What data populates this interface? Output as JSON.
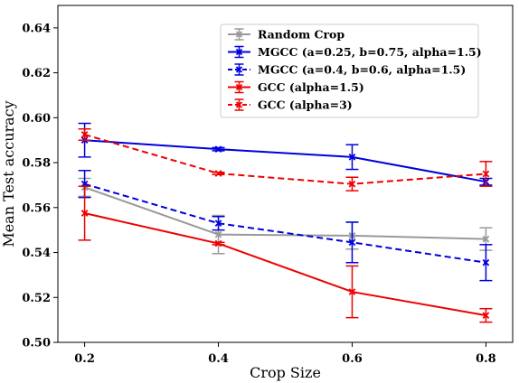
{
  "chart_data": {
    "type": "line",
    "xlabel": "Crop Size",
    "ylabel": "Mean Test accuracy",
    "xlim": [
      0.16,
      0.84
    ],
    "ylim": [
      0.5,
      0.65
    ],
    "xticks": [
      0.2,
      0.4,
      0.6,
      0.8
    ],
    "yticks": [
      0.5,
      0.52,
      0.54,
      0.56,
      0.58,
      0.6,
      0.62,
      0.64
    ],
    "xtick_labels": [
      "0.2",
      "0.4",
      "0.6",
      "0.8"
    ],
    "ytick_labels": [
      "0.50",
      "0.52",
      "0.54",
      "0.56",
      "0.58",
      "0.60",
      "0.62",
      "0.64"
    ],
    "x": [
      0.2,
      0.4,
      0.6,
      0.8
    ],
    "grid": false,
    "legend_position": "top-right",
    "series": [
      {
        "name": "Random Crop",
        "color": "#999999",
        "linestyle": "solid",
        "values": [
          0.569,
          0.548,
          0.5475,
          0.546
        ],
        "errors": [
          0.004,
          0.0085,
          0.006,
          0.005
        ]
      },
      {
        "name": "MGCC (a=0.25, b=0.75, alpha=1.5)",
        "color": "#0000dd",
        "linestyle": "solid",
        "values": [
          0.59,
          0.586,
          0.5825,
          0.5715
        ],
        "errors": [
          0.0075,
          0.0007,
          0.0055,
          0.0015
        ]
      },
      {
        "name": "MGCC (a=0.4, b=0.6, alpha=1.5)",
        "color": "#0000dd",
        "linestyle": "dashed",
        "values": [
          0.5705,
          0.553,
          0.5445,
          0.5355
        ],
        "errors": [
          0.006,
          0.003,
          0.009,
          0.008
        ]
      },
      {
        "name": "GCC (alpha=1.5)",
        "color": "#ee0000",
        "linestyle": "solid",
        "values": [
          0.5575,
          0.544,
          0.5225,
          0.512
        ],
        "errors": [
          0.012,
          0.0005,
          0.0115,
          0.003
        ]
      },
      {
        "name": "GCC (alpha=3)",
        "color": "#ee0000",
        "linestyle": "dashed",
        "values": [
          0.5925,
          0.5752,
          0.5705,
          0.575
        ],
        "errors": [
          0.0025,
          0.0005,
          0.003,
          0.0055
        ]
      }
    ]
  }
}
